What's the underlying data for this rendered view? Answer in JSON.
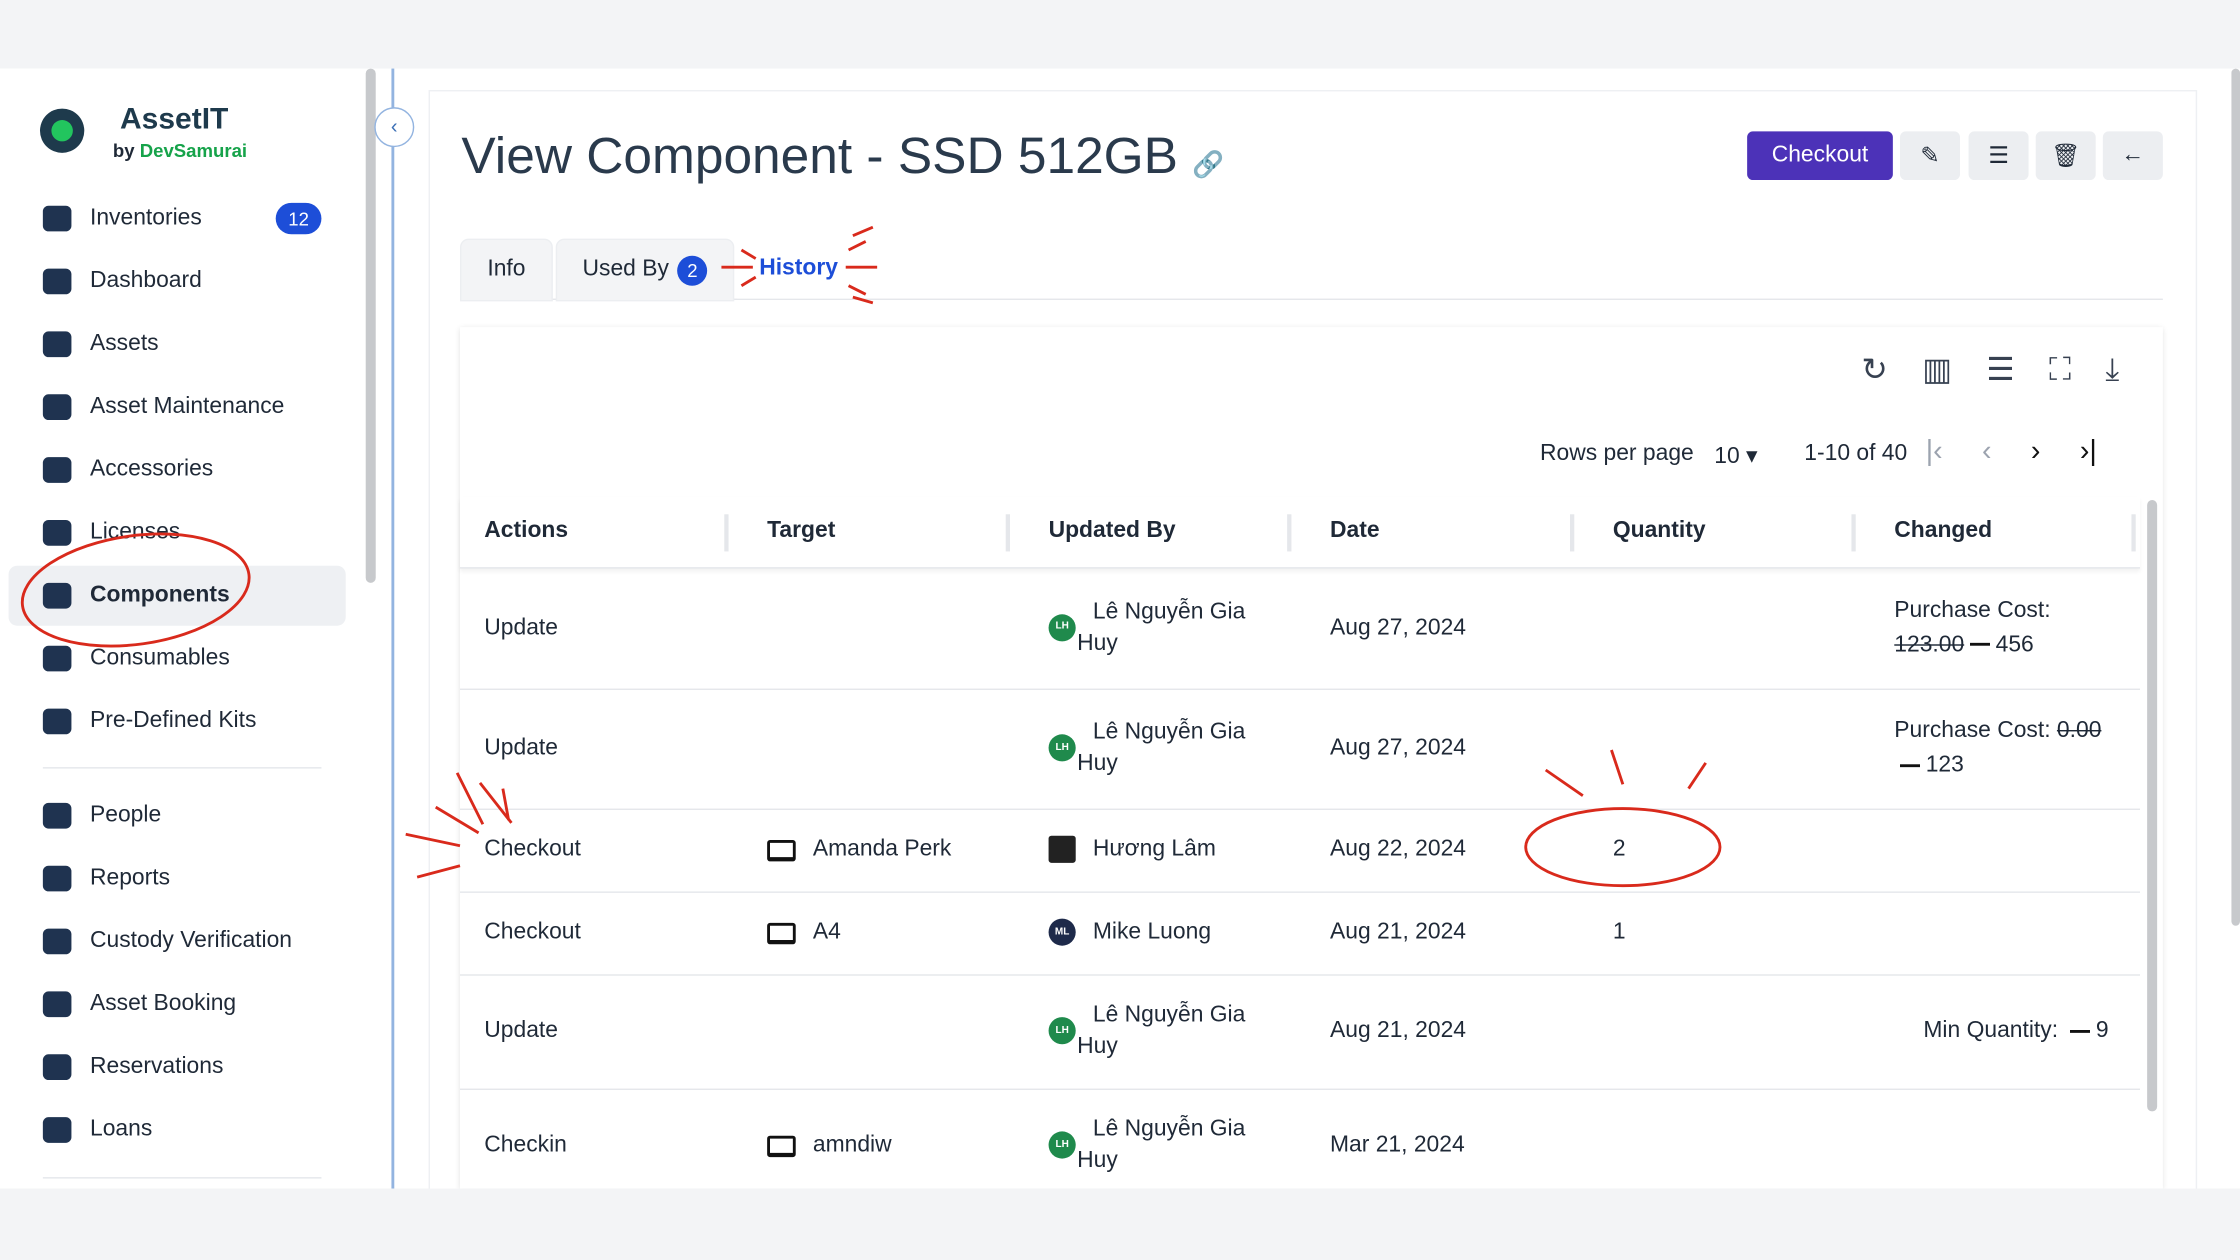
{
  "sidebar": {
    "brand": "AssetIT",
    "byline": "by",
    "company": "DevSamurai",
    "nav": [
      {
        "label": "Inventories",
        "badge": "12"
      },
      {
        "label": "Dashboard"
      },
      {
        "label": "Assets"
      },
      {
        "label": "Asset Maintenance"
      },
      {
        "label": "Accessories"
      },
      {
        "label": "Licenses"
      },
      {
        "label": "Components"
      },
      {
        "label": "Consumables"
      },
      {
        "label": "Pre-Defined Kits"
      },
      {
        "label": "People"
      },
      {
        "label": "Reports"
      },
      {
        "label": "Custody Verification"
      },
      {
        "label": "Asset Booking"
      },
      {
        "label": "Reservations"
      },
      {
        "label": "Loans"
      }
    ]
  },
  "header": {
    "title": "View Component - SSD 512GB",
    "checkout_button": "Checkout"
  },
  "tabs": [
    {
      "label": "Info"
    },
    {
      "label": "Used By",
      "badge": "2"
    },
    {
      "label": "History"
    }
  ],
  "table": {
    "rows_per_page_label": "Rows per page",
    "rows_per_page": "10",
    "range": "1-10 of 40",
    "columns": [
      "Actions",
      "Target",
      "Updated By",
      "Date",
      "Quantity",
      "Changed"
    ],
    "rows": [
      {
        "action": "Update",
        "updated_by": "Lê Nguyễn Gia Huy",
        "initials": "LH",
        "date": "Aug 27, 2024",
        "changed": {
          "field": "Purchase Cost:",
          "old": "123.00",
          "new": "456"
        }
      },
      {
        "action": "Update",
        "updated_by": "Lê Nguyễn Gia Huy",
        "initials": "LH",
        "date": "Aug 27, 2024",
        "changed": {
          "field": "Purchase Cost:",
          "old": "0.00",
          "new": "123"
        }
      },
      {
        "action": "Checkout",
        "target": "Amanda Perk",
        "updated_by": "Hương Lâm",
        "date": "Aug 22, 2024",
        "quantity": 2
      },
      {
        "action": "Checkout",
        "target": "A4",
        "updated_by": "Mike Luong",
        "initials": "ML",
        "date": "Aug 21, 2024",
        "quantity": 1
      },
      {
        "action": "Update",
        "updated_by": "Lê Nguyễn Gia Huy",
        "initials": "LH",
        "date": "Aug 21, 2024",
        "changed": {
          "field": "Min Quantity:",
          "new": "9"
        }
      },
      {
        "action": "Checkin",
        "target": "amndiw",
        "updated_by": "Lê Nguyễn Gia Huy",
        "initials": "LH",
        "date": "Mar 21, 2024"
      }
    ]
  }
}
